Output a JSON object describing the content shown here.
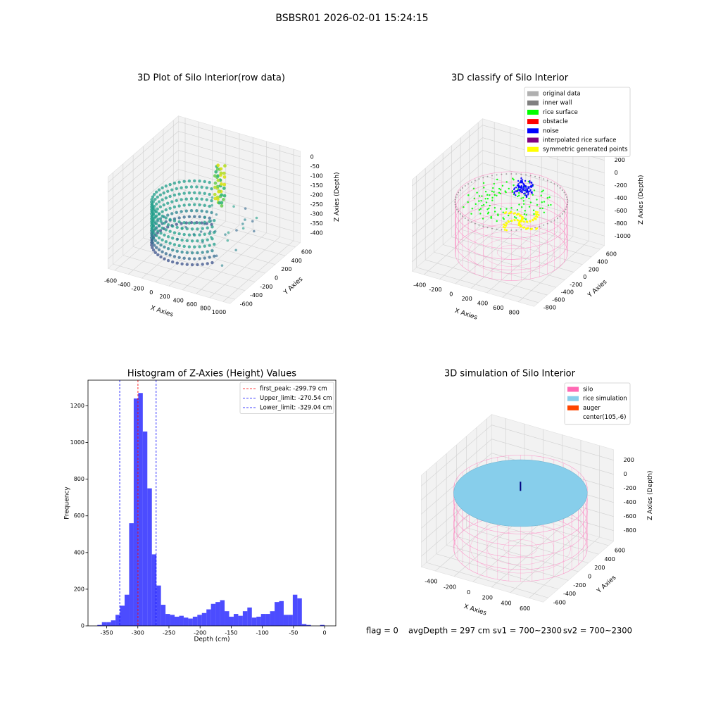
{
  "title": "BSBSR01 2026-02-01 15:24:15",
  "footer": [
    "flag = 0",
    "avgDepth = 297 cm",
    "sv1 = 700~2300",
    "sv2 = 700~2300"
  ],
  "chart_data": [
    {
      "type": "scatter3d",
      "title": "3D Plot of Silo Interior(row data)",
      "xlabel": "X Axies",
      "ylabel": "Y Axies",
      "zlabel": "Z Axies (Depth)",
      "xlim": [
        -700,
        1100
      ],
      "ylim": [
        -700,
        700
      ],
      "zlim": [
        -450,
        30
      ],
      "xticks": [
        -600,
        -400,
        -200,
        0,
        200,
        400,
        600,
        800,
        1000
      ],
      "yticks": [
        -600,
        -400,
        -200,
        0,
        200,
        400,
        600
      ],
      "zticks": [
        0,
        -50,
        -100,
        -150,
        -200,
        -250,
        -300,
        -350,
        -400
      ]
    },
    {
      "type": "scatter3d",
      "title": "3D classify of Silo Interior",
      "xlabel": "X Axies",
      "ylabel": "Y Axies",
      "zlabel": "Z Axies (Depth)",
      "xlim": [
        -550,
        1000
      ],
      "ylim": [
        -900,
        700
      ],
      "zlim": [
        -1150,
        300
      ],
      "xticks": [
        -400,
        -200,
        0,
        200,
        400,
        600,
        800
      ],
      "yticks": [
        -800,
        -600,
        -400,
        -200,
        0,
        200,
        400,
        600
      ],
      "zticks": [
        200,
        0,
        -200,
        -400,
        -600,
        -800,
        -1000
      ],
      "series": [
        {
          "name": "original data",
          "color": "#b0b0b0"
        },
        {
          "name": "inner wall",
          "color": "#808080"
        },
        {
          "name": "rice surface",
          "color": "#00ff00"
        },
        {
          "name": "obstacle",
          "color": "#ff0000"
        },
        {
          "name": "noise",
          "color": "#0000ff"
        },
        {
          "name": "interpolated rice surface",
          "color": "#800080"
        },
        {
          "name": "symmetric generated points",
          "color": "#ffff00"
        }
      ]
    },
    {
      "type": "histogram",
      "title": "Histogram of Z-Axies (Height) Values",
      "xlabel": "Depth (cm)",
      "ylabel": "Frequency",
      "color": "#0000ff",
      "bins": [
        -365,
        -357.7,
        -350.4,
        -343.1,
        -335.8,
        -328.5,
        -321.2,
        -313.9,
        -306.6,
        -299.3,
        -292,
        -284.7,
        -277.4,
        -270.1,
        -262.8,
        -255.5,
        -248.2,
        -240.9,
        -233.6,
        -226.3,
        -219,
        -211.7,
        -204.4,
        -197.1,
        -189.8,
        -182.5,
        -175.2,
        -167.9,
        -160.6,
        -153.3,
        -146,
        -138.7,
        -131.4,
        -124.1,
        -116.8,
        -109.5,
        -102.2,
        -94.9,
        -87.6,
        -80.3,
        -73,
        -65.7,
        -58.4,
        -51.1,
        -43.8,
        -36.5,
        -29.2,
        -21.9,
        -14.6,
        -7.3,
        0
      ],
      "values": [
        5,
        20,
        20,
        30,
        60,
        110,
        170,
        560,
        1240,
        1270,
        1060,
        750,
        390,
        220,
        115,
        65,
        60,
        50,
        55,
        45,
        40,
        50,
        60,
        70,
        90,
        120,
        130,
        140,
        80,
        50,
        65,
        55,
        80,
        100,
        45,
        50,
        65,
        65,
        80,
        130,
        135,
        60,
        60,
        170,
        150,
        10,
        5,
        0,
        0,
        5
      ],
      "xlim": [
        -380,
        18
      ],
      "ylim": [
        0,
        1340
      ],
      "xticks": [
        -350,
        -300,
        -250,
        -200,
        -150,
        -100,
        -50,
        0
      ],
      "yticks": [
        0,
        200,
        400,
        600,
        800,
        1000,
        1200
      ],
      "legend": "upper right",
      "lines": [
        {
          "name": "first_peak: -299.79 cm",
          "value": -299.79,
          "color": "#ff0000"
        },
        {
          "name": "Upper_limit: -270.54 cm",
          "value": -270.54,
          "color": "#0000ff"
        },
        {
          "name": "Lower_limit: -329.04 cm",
          "value": -329.04,
          "color": "#0000ff"
        }
      ]
    },
    {
      "type": "scatter3d",
      "title": "3D simulation of Silo Interior",
      "xlabel": "X Axies",
      "ylabel": "Y Axies",
      "zlabel": "Z Axies (Depth)",
      "xlim": [
        -550,
        750
      ],
      "ylim": [
        -700,
        700
      ],
      "zlim": [
        -950,
        350
      ],
      "xticks": [
        -400,
        -200,
        0,
        200,
        400,
        600
      ],
      "yticks": [
        -600,
        -400,
        -200,
        0,
        200,
        400,
        600
      ],
      "zticks": [
        200,
        0,
        -200,
        -400,
        -600,
        -800
      ],
      "series": [
        {
          "name": "silo",
          "color": "#ff69b4"
        },
        {
          "name": "rice simulation",
          "color": "#87ceeb"
        },
        {
          "name": "auger",
          "color": "#ff4500"
        },
        {
          "name": "center(105,-6)",
          "color": "#ffffff"
        }
      ]
    }
  ]
}
